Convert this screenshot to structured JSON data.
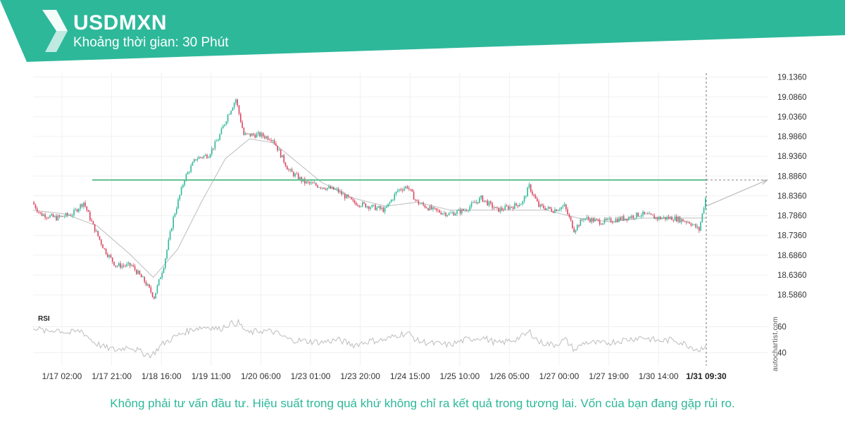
{
  "header": {
    "title": "USDMXN",
    "subtitle": "Khoảng thời gian: 30 Phút"
  },
  "footer": {
    "disclaimer": "Không phải tư vấn đầu tư. Hiệu suất trong quá khứ không chỉ ra kết quả trong tương lai. Vốn của bạn đang gặp rủi ro.",
    "watermark": "autochartist.com"
  },
  "colors": {
    "brand": "#2db89a",
    "brand_dark": "#21a384",
    "candle_up": "#2db89a",
    "candle_down": "#d9455f",
    "level_line": "#5fbf8f",
    "ma_line": "#bdbdbd",
    "rsi_line": "#bdbdbd",
    "grid": "#f0f0f0"
  },
  "chart_data": [
    {
      "type": "candlestick",
      "title": "USDMXN",
      "interval": "30 Phút",
      "ylim": [
        18.556,
        19.146
      ],
      "y_ticks": [
        "19.1360",
        "19.0860",
        "19.0360",
        "18.9860",
        "18.9360",
        "18.8860",
        "18.8360",
        "18.7860",
        "18.7360",
        "18.6860",
        "18.6360",
        "18.5860"
      ],
      "x_ticks": [
        "1/17 02:00",
        "1/17 21:00",
        "1/18 16:00",
        "1/19 11:00",
        "1/20 06:00",
        "1/23 01:00",
        "1/23 20:00",
        "1/24 15:00",
        "1/25 10:00",
        "1/26 05:00",
        "1/27 00:00",
        "1/27 19:00",
        "1/30 14:00",
        "1/31 09:30"
      ],
      "current_time_label": "1/31 09:30",
      "price_path": [
        [
          0,
          18.82
        ],
        [
          5,
          18.79
        ],
        [
          15,
          18.78
        ],
        [
          25,
          18.79
        ],
        [
          32,
          18.82
        ],
        [
          38,
          18.76
        ],
        [
          45,
          18.7
        ],
        [
          52,
          18.66
        ],
        [
          62,
          18.66
        ],
        [
          70,
          18.62
        ],
        [
          76,
          18.58
        ],
        [
          82,
          18.66
        ],
        [
          88,
          18.78
        ],
        [
          95,
          18.88
        ],
        [
          102,
          18.93
        ],
        [
          110,
          18.94
        ],
        [
          116,
          18.98
        ],
        [
          122,
          19.04
        ],
        [
          127,
          19.08
        ],
        [
          132,
          18.99
        ],
        [
          142,
          18.99
        ],
        [
          150,
          18.98
        ],
        [
          160,
          18.9
        ],
        [
          170,
          18.87
        ],
        [
          180,
          18.86
        ],
        [
          190,
          18.85
        ],
        [
          200,
          18.82
        ],
        [
          210,
          18.81
        ],
        [
          220,
          18.8
        ],
        [
          228,
          18.85
        ],
        [
          234,
          18.86
        ],
        [
          240,
          18.82
        ],
        [
          250,
          18.8
        ],
        [
          260,
          18.79
        ],
        [
          270,
          18.8
        ],
        [
          280,
          18.83
        ],
        [
          290,
          18.8
        ],
        [
          300,
          18.81
        ],
        [
          306,
          18.82
        ],
        [
          310,
          18.86
        ],
        [
          316,
          18.81
        ],
        [
          325,
          18.8
        ],
        [
          332,
          18.81
        ],
        [
          338,
          18.75
        ],
        [
          344,
          18.78
        ],
        [
          355,
          18.77
        ],
        [
          370,
          18.78
        ],
        [
          380,
          18.79
        ],
        [
          390,
          18.78
        ],
        [
          400,
          18.78
        ],
        [
          410,
          18.77
        ],
        [
          416,
          18.75
        ],
        [
          420,
          18.83
        ]
      ],
      "moving_average": [
        [
          0,
          18.8
        ],
        [
          20,
          18.79
        ],
        [
          40,
          18.76
        ],
        [
          60,
          18.69
        ],
        [
          75,
          18.63
        ],
        [
          90,
          18.7
        ],
        [
          105,
          18.82
        ],
        [
          120,
          18.93
        ],
        [
          135,
          18.98
        ],
        [
          150,
          18.97
        ],
        [
          165,
          18.92
        ],
        [
          180,
          18.87
        ],
        [
          200,
          18.83
        ],
        [
          220,
          18.81
        ],
        [
          240,
          18.82
        ],
        [
          260,
          18.8
        ],
        [
          280,
          18.8
        ],
        [
          300,
          18.8
        ],
        [
          320,
          18.8
        ],
        [
          340,
          18.78
        ],
        [
          360,
          18.77
        ],
        [
          380,
          18.78
        ],
        [
          400,
          18.78
        ],
        [
          420,
          18.78
        ]
      ],
      "candle_count": 420,
      "level_line": 18.876,
      "forecast_arrow": {
        "from": [
          420,
          18.81
        ],
        "to": [
          458,
          18.876
        ]
      }
    },
    {
      "type": "line",
      "title": "RSI",
      "ylim": [
        30,
        70
      ],
      "y_ticks": [
        "60",
        "40"
      ],
      "rsi_path": [
        [
          0,
          60
        ],
        [
          8,
          56
        ],
        [
          15,
          58
        ],
        [
          22,
          55
        ],
        [
          30,
          57
        ],
        [
          38,
          48
        ],
        [
          45,
          44
        ],
        [
          52,
          42
        ],
        [
          60,
          45
        ],
        [
          68,
          40
        ],
        [
          74,
          38
        ],
        [
          80,
          46
        ],
        [
          88,
          52
        ],
        [
          95,
          56
        ],
        [
          102,
          59
        ],
        [
          110,
          60
        ],
        [
          116,
          58
        ],
        [
          122,
          62
        ],
        [
          128,
          63
        ],
        [
          134,
          55
        ],
        [
          142,
          57
        ],
        [
          150,
          56
        ],
        [
          160,
          50
        ],
        [
          170,
          49
        ],
        [
          180,
          48
        ],
        [
          190,
          50
        ],
        [
          200,
          46
        ],
        [
          210,
          49
        ],
        [
          220,
          50
        ],
        [
          228,
          54
        ],
        [
          234,
          55
        ],
        [
          240,
          49
        ],
        [
          250,
          47
        ],
        [
          260,
          46
        ],
        [
          270,
          50
        ],
        [
          280,
          52
        ],
        [
          290,
          47
        ],
        [
          300,
          50
        ],
        [
          306,
          53
        ],
        [
          310,
          56
        ],
        [
          316,
          48
        ],
        [
          325,
          46
        ],
        [
          332,
          50
        ],
        [
          338,
          42
        ],
        [
          344,
          48
        ],
        [
          355,
          47
        ],
        [
          370,
          50
        ],
        [
          380,
          52
        ],
        [
          390,
          49
        ],
        [
          400,
          50
        ],
        [
          410,
          45
        ],
        [
          416,
          42
        ],
        [
          420,
          47
        ]
      ]
    }
  ]
}
